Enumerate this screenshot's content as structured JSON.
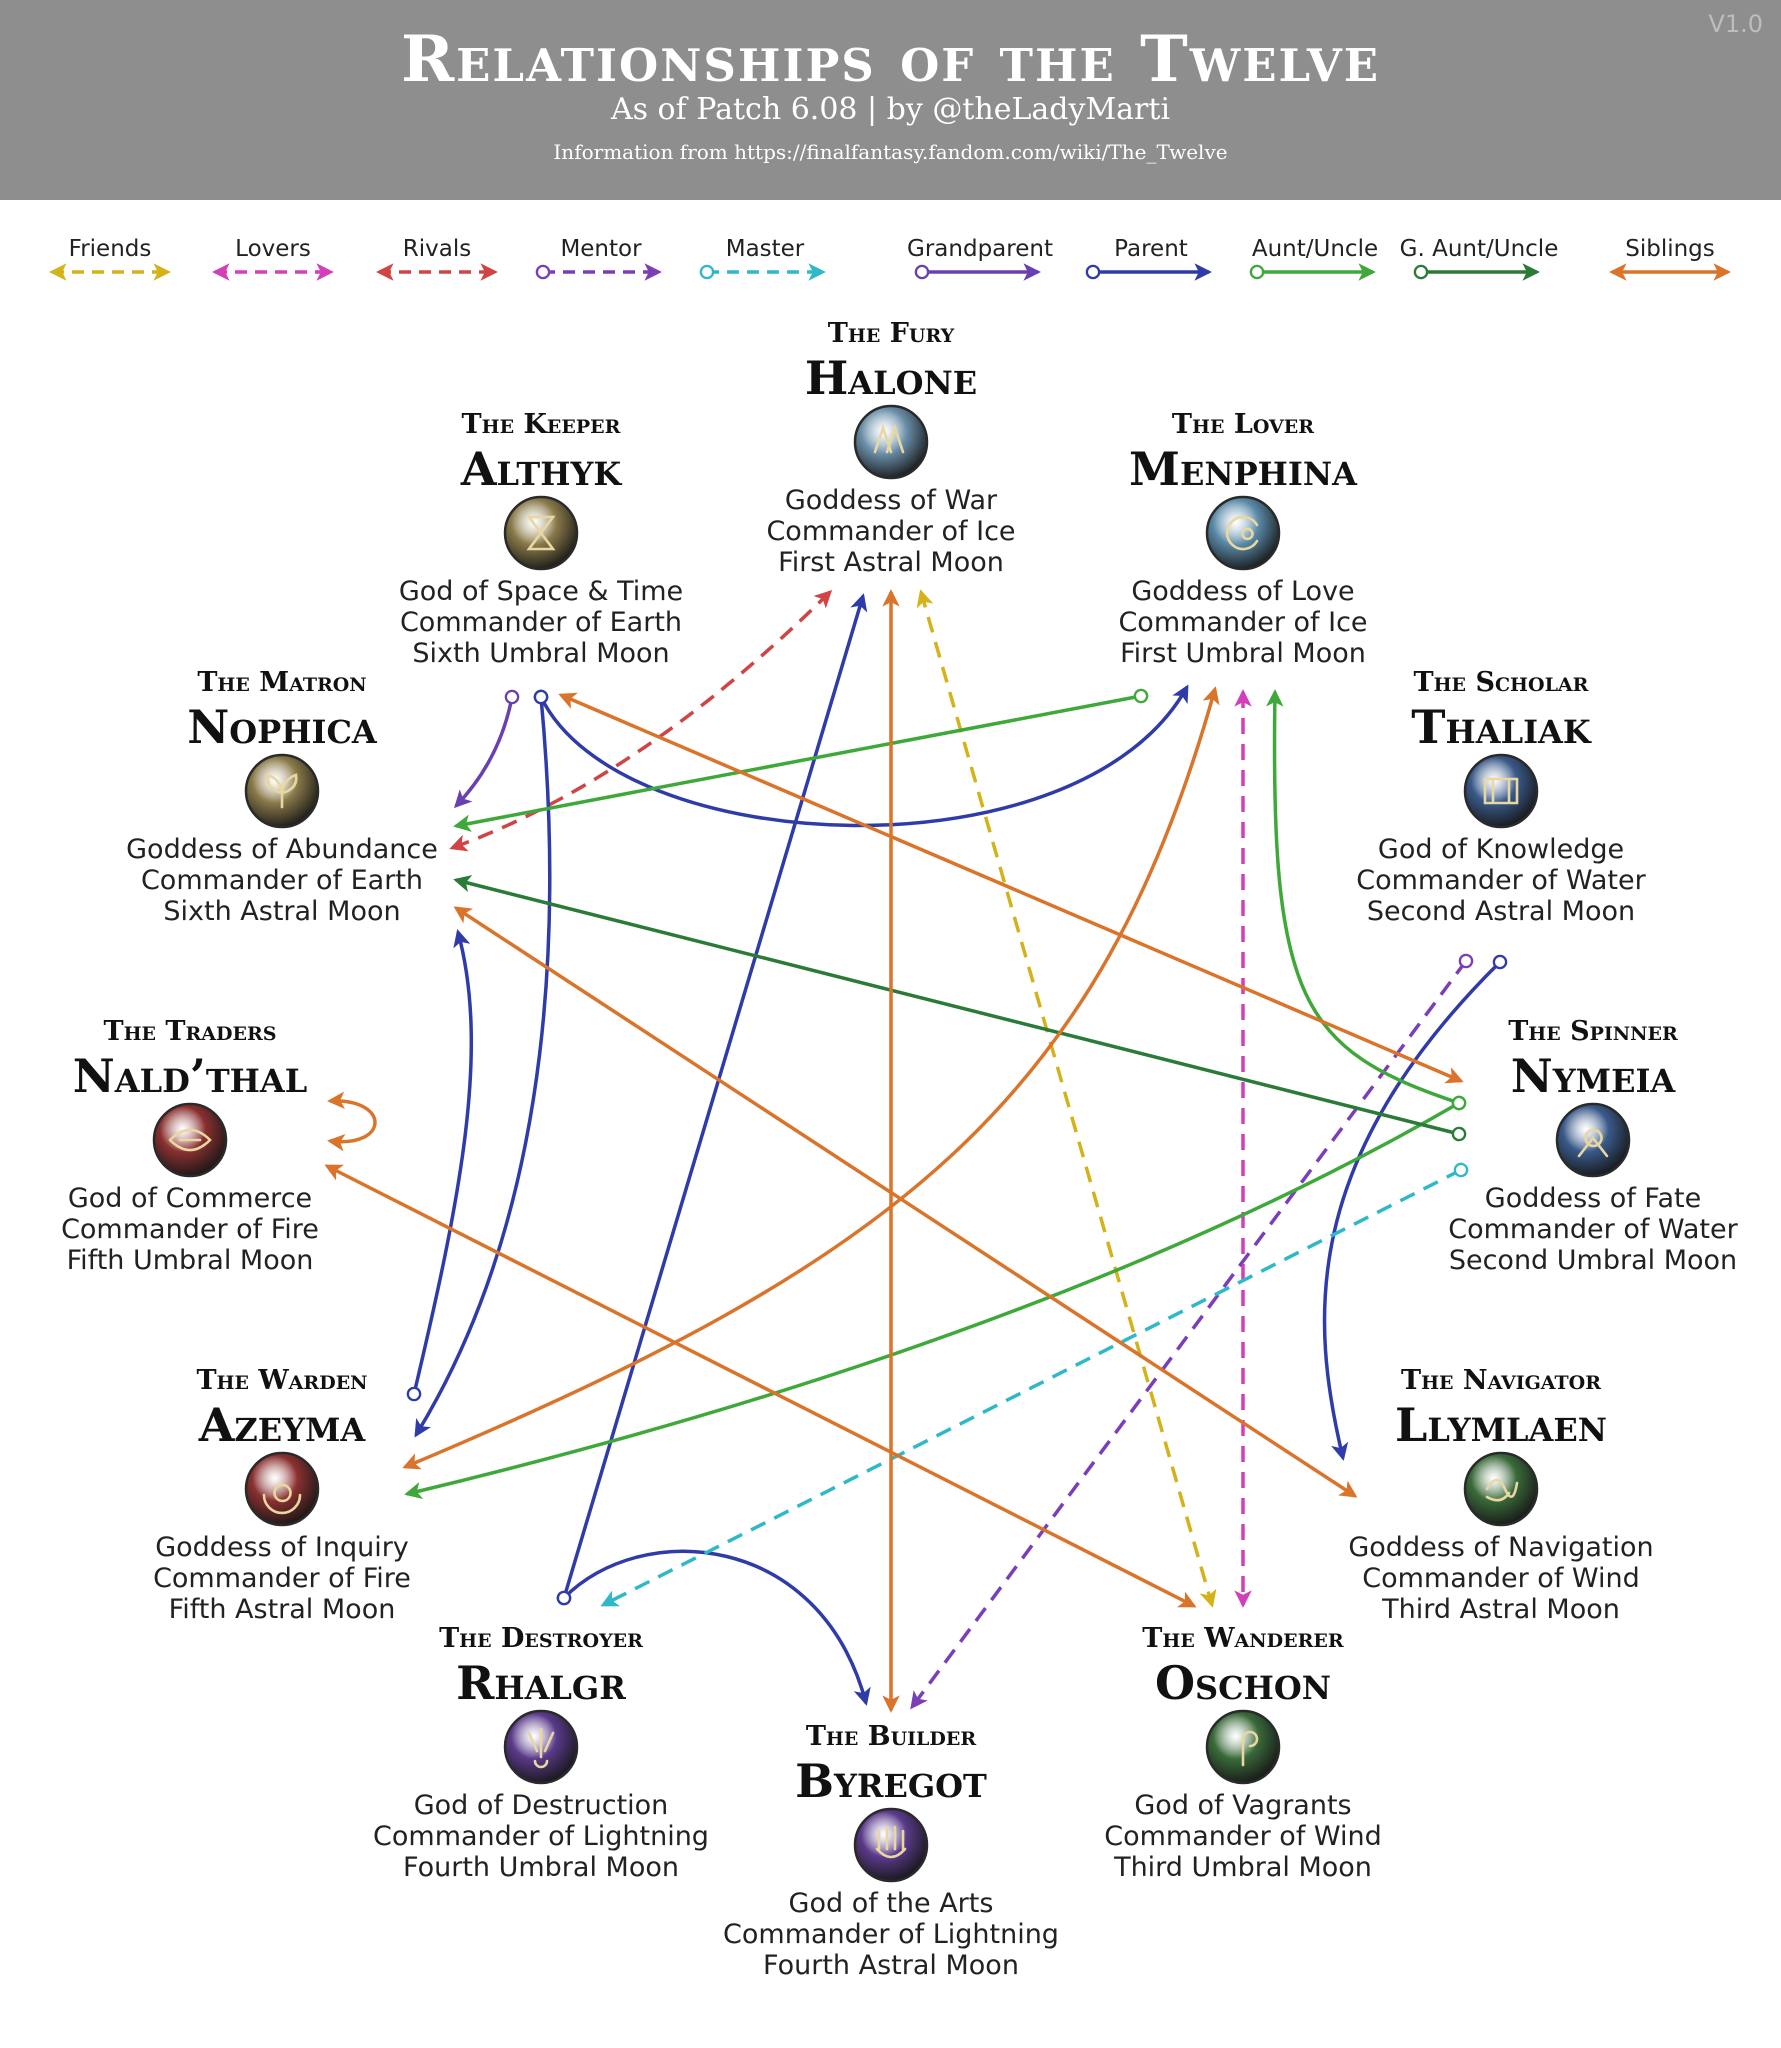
{
  "header": {
    "title": "Relationships of the Twelve",
    "subtitle": "As of Patch 6.08 | by @theLadyMarti",
    "source": "Information from https://finalfantasy.fandom.com/wiki/The_Twelve",
    "version": "V1.0"
  },
  "colors": {
    "friends": "#d4b21a",
    "lovers": "#d23fb8",
    "rivals": "#d04444",
    "mentor": "#7a3fb8",
    "master": "#2fb8c8",
    "grandparent": "#6a3fb0",
    "parent": "#2e3ba8",
    "aunt_uncle": "#3fa83a",
    "g_aunt_uncle": "#2a7a38",
    "siblings": "#d9742a",
    "header_bg": "#8e8e8e"
  },
  "legend": [
    {
      "label": "Friends",
      "color": "#d4b21a",
      "style": "dashed-double"
    },
    {
      "label": "Lovers",
      "color": "#d23fb8",
      "style": "dashed-double"
    },
    {
      "label": "Rivals",
      "color": "#d04444",
      "style": "dashed-double"
    },
    {
      "label": "Mentor",
      "color": "#7a3fb8",
      "style": "dashed-circle"
    },
    {
      "label": "Master",
      "color": "#2fb8c8",
      "style": "dashed-circle"
    },
    {
      "label": "Grandparent",
      "color": "#6a3fb0",
      "style": "solid-circle"
    },
    {
      "label": "Parent",
      "color": "#2e3ba8",
      "style": "solid-circle"
    },
    {
      "label": "Aunt/Uncle",
      "color": "#3fa83a",
      "style": "solid-circle"
    },
    {
      "label": "G. Aunt/Uncle",
      "color": "#2a7a38",
      "style": "solid-circle"
    },
    {
      "label": "Siblings",
      "color": "#d9742a",
      "style": "solid-double"
    }
  ],
  "gods": [
    {
      "id": "halone",
      "epithet": "The Fury",
      "name": "Halone",
      "lines": [
        "Goddess of War",
        "Commander of Ice",
        "First Astral Moon"
      ],
      "icon": "halone-icon",
      "icon_color": "#6a8ea8"
    },
    {
      "id": "althyk",
      "epithet": "The Keeper",
      "name": "Althyk",
      "lines": [
        "God of Space & Time",
        "Commander of Earth",
        "Sixth Umbral Moon"
      ],
      "icon": "althyk-icon",
      "icon_color": "#8a7a4a"
    },
    {
      "id": "menphina",
      "epithet": "The Lover",
      "name": "Menphina",
      "lines": [
        "Goddess of Love",
        "Commander of Ice",
        "First Umbral Moon"
      ],
      "icon": "menphina-icon",
      "icon_color": "#5a8aa8"
    },
    {
      "id": "nophica",
      "epithet": "The Matron",
      "name": "Nophica",
      "lines": [
        "Goddess of Abundance",
        "Commander of Earth",
        "Sixth Astral Moon"
      ],
      "icon": "nophica-icon",
      "icon_color": "#8a7a4a"
    },
    {
      "id": "thaliak",
      "epithet": "The Scholar",
      "name": "Thaliak",
      "lines": [
        "God of Knowledge",
        "Commander of Water",
        "Second Astral Moon"
      ],
      "icon": "thaliak-icon",
      "icon_color": "#3a5a8a"
    },
    {
      "id": "naldthal",
      "epithet": "The Traders",
      "name": "Nald’thal",
      "lines": [
        "God of Commerce",
        "Commander of Fire",
        "Fifth Umbral Moon"
      ],
      "icon": "naldthal-icon",
      "icon_color": "#8a3030"
    },
    {
      "id": "nymeia",
      "epithet": "The Spinner",
      "name": "Nymeia",
      "lines": [
        "Goddess of Fate",
        "Commander of Water",
        "Second Umbral Moon"
      ],
      "icon": "nymeia-icon",
      "icon_color": "#3a5a8a"
    },
    {
      "id": "azeyma",
      "epithet": "The Warden",
      "name": "Azeyma",
      "lines": [
        "Goddess of Inquiry",
        "Commander of Fire",
        "Fifth Astral Moon"
      ],
      "icon": "azeyma-icon",
      "icon_color": "#8a3030"
    },
    {
      "id": "llymlaen",
      "epithet": "The Navigator",
      "name": "Llymlaen",
      "lines": [
        "Goddess of Navigation",
        "Commander of Wind",
        "Third Astral Moon"
      ],
      "icon": "llymlaen-icon",
      "icon_color": "#3a6a3a"
    },
    {
      "id": "rhalgr",
      "epithet": "The Destroyer",
      "name": "Rhalgr",
      "lines": [
        "God of Destruction",
        "Commander of Lightning",
        "Fourth Umbral Moon"
      ],
      "icon": "rhalgr-icon",
      "icon_color": "#5a3a8a"
    },
    {
      "id": "oschon",
      "epithet": "The Wanderer",
      "name": "Oschon",
      "lines": [
        "God of Vagrants",
        "Commander of Wind",
        "Third Umbral Moon"
      ],
      "icon": "oschon-icon",
      "icon_color": "#3a6a3a"
    },
    {
      "id": "byregot",
      "epithet": "The Builder",
      "name": "Byregot",
      "lines": [
        "God of the Arts",
        "Commander of Lightning",
        "Fourth Astral Moon"
      ],
      "icon": "byregot-icon",
      "icon_color": "#5a3a8a"
    }
  ],
  "relationships": [
    {
      "from": "nophica",
      "to": "halone",
      "type": "rivals"
    },
    {
      "from": "oschon",
      "to": "halone",
      "type": "friends"
    },
    {
      "from": "menphina",
      "to": "oschon",
      "type": "lovers"
    },
    {
      "from": "althyk",
      "to": "nophica",
      "type": "grandparent"
    },
    {
      "from": "althyk",
      "to": "menphina",
      "type": "parent"
    },
    {
      "from": "althyk",
      "to": "azeyma",
      "type": "parent"
    },
    {
      "from": "azeyma",
      "to": "nophica",
      "type": "parent"
    },
    {
      "from": "rhalgr",
      "to": "halone",
      "type": "parent"
    },
    {
      "from": "rhalgr",
      "to": "byregot",
      "type": "parent"
    },
    {
      "from": "thaliak",
      "to": "llymlaen",
      "type": "parent"
    },
    {
      "from": "thaliak",
      "to": "byregot",
      "type": "mentor"
    },
    {
      "from": "nymeia",
      "to": "rhalgr",
      "type": "master"
    },
    {
      "from": "menphina",
      "to": "nophica",
      "type": "aunt_uncle"
    },
    {
      "from": "nymeia",
      "to": "menphina",
      "type": "aunt_uncle"
    },
    {
      "from": "nymeia",
      "to": "azeyma",
      "type": "aunt_uncle"
    },
    {
      "from": "nymeia",
      "to": "nophica",
      "type": "g_aunt_uncle"
    },
    {
      "from": "byregot",
      "to": "halone",
      "type": "siblings"
    },
    {
      "from": "althyk",
      "to": "nymeia",
      "type": "siblings"
    },
    {
      "from": "azeyma",
      "to": "menphina",
      "type": "siblings"
    },
    {
      "from": "nophica",
      "to": "llymlaen",
      "type": "siblings"
    },
    {
      "from": "naldthal",
      "to": "oschon",
      "type": "siblings"
    },
    {
      "from": "naldthal",
      "to": "naldthal",
      "type": "siblings"
    }
  ]
}
